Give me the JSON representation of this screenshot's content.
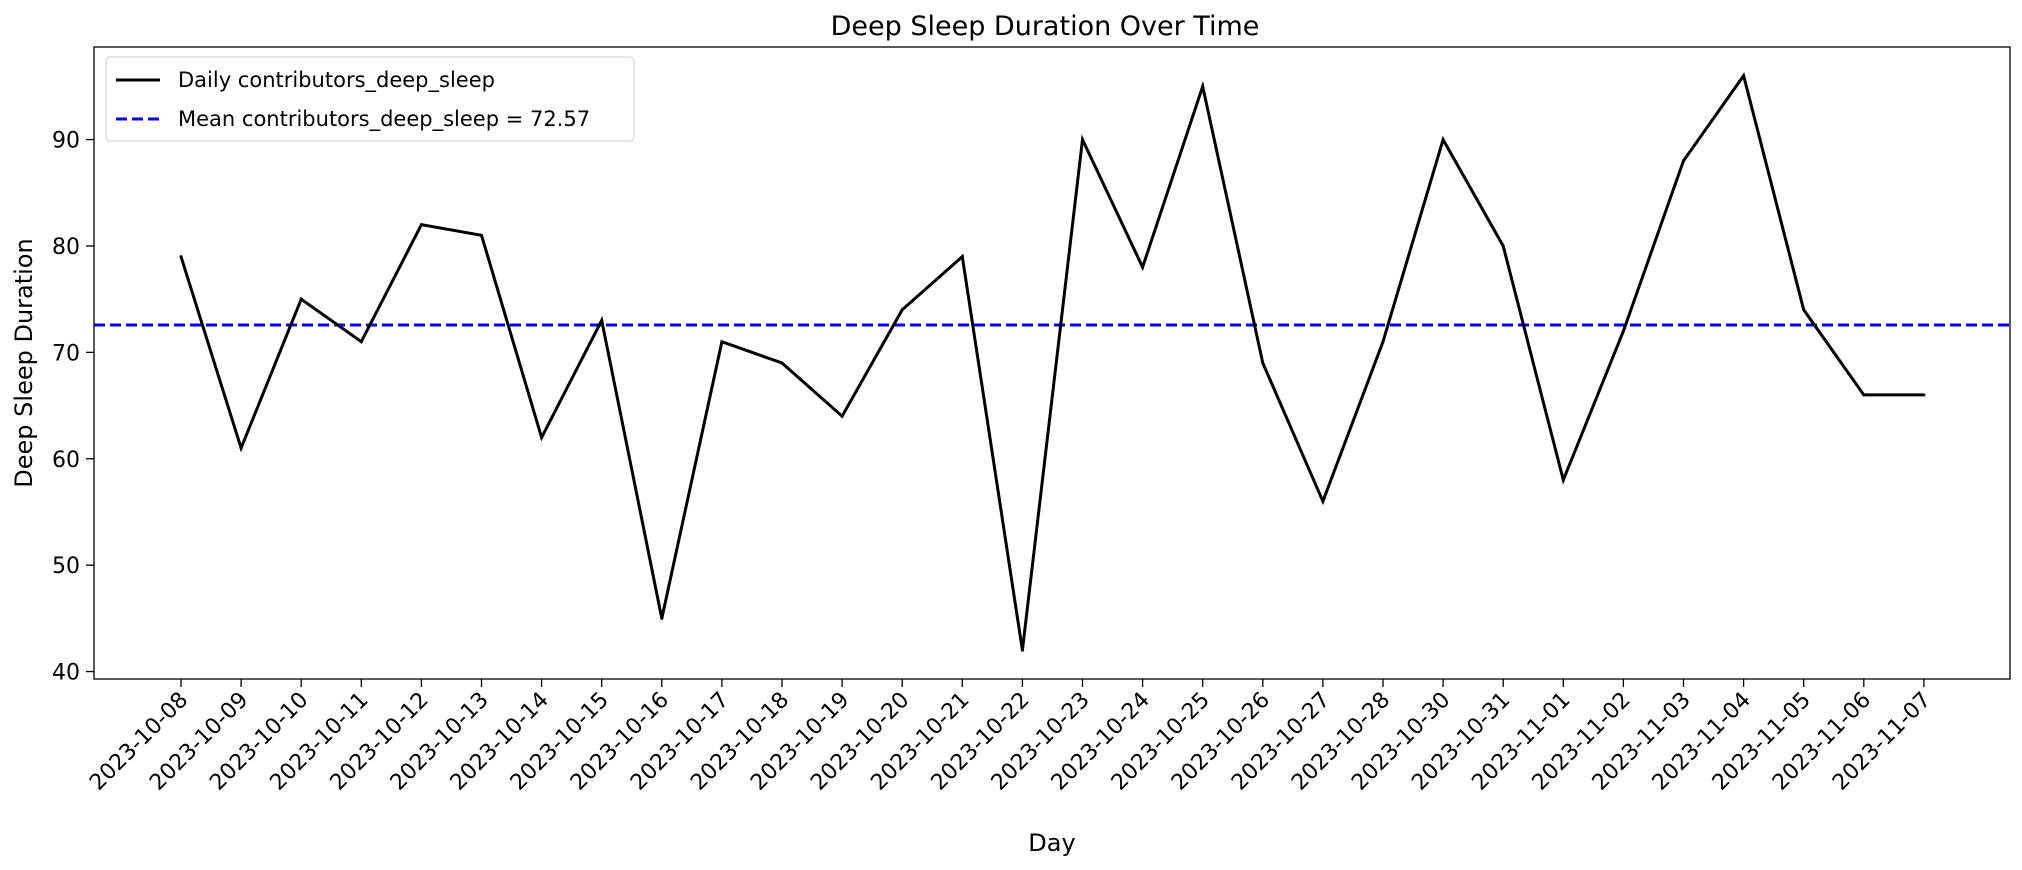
{
  "chart_data": {
    "type": "line",
    "title": "Deep Sleep Duration Over Time",
    "xlabel": "Day",
    "ylabel": "Deep Sleep Duration",
    "ylim": [
      39.3,
      98.7
    ],
    "yticks": [
      40,
      50,
      60,
      70,
      80,
      90
    ],
    "grid": false,
    "legend_position": "upper-left",
    "x": [
      "2023-10-08",
      "2023-10-09",
      "2023-10-10",
      "2023-10-11",
      "2023-10-12",
      "2023-10-13",
      "2023-10-14",
      "2023-10-15",
      "2023-10-16",
      "2023-10-17",
      "2023-10-18",
      "2023-10-19",
      "2023-10-20",
      "2023-10-21",
      "2023-10-22",
      "2023-10-23",
      "2023-10-24",
      "2023-10-25",
      "2023-10-26",
      "2023-10-27",
      "2023-10-28",
      "2023-10-30",
      "2023-10-31",
      "2023-11-01",
      "2023-11-02",
      "2023-11-03",
      "2023-11-04",
      "2023-11-05",
      "2023-11-06",
      "2023-11-07"
    ],
    "series": [
      {
        "name": "Daily contributors_deep_sleep",
        "color": "#000000",
        "style": "solid",
        "values": [
          79,
          61,
          75,
          71,
          82,
          81,
          62,
          73,
          45,
          71,
          69,
          64,
          74,
          79,
          42,
          90,
          78,
          95,
          69,
          56,
          71,
          90,
          80,
          58,
          72,
          88,
          96,
          74,
          66,
          66
        ]
      },
      {
        "name": "Mean contributors_deep_sleep = 72.57",
        "color": "#0000ff",
        "style": "dashed",
        "value": 72.57
      }
    ]
  }
}
